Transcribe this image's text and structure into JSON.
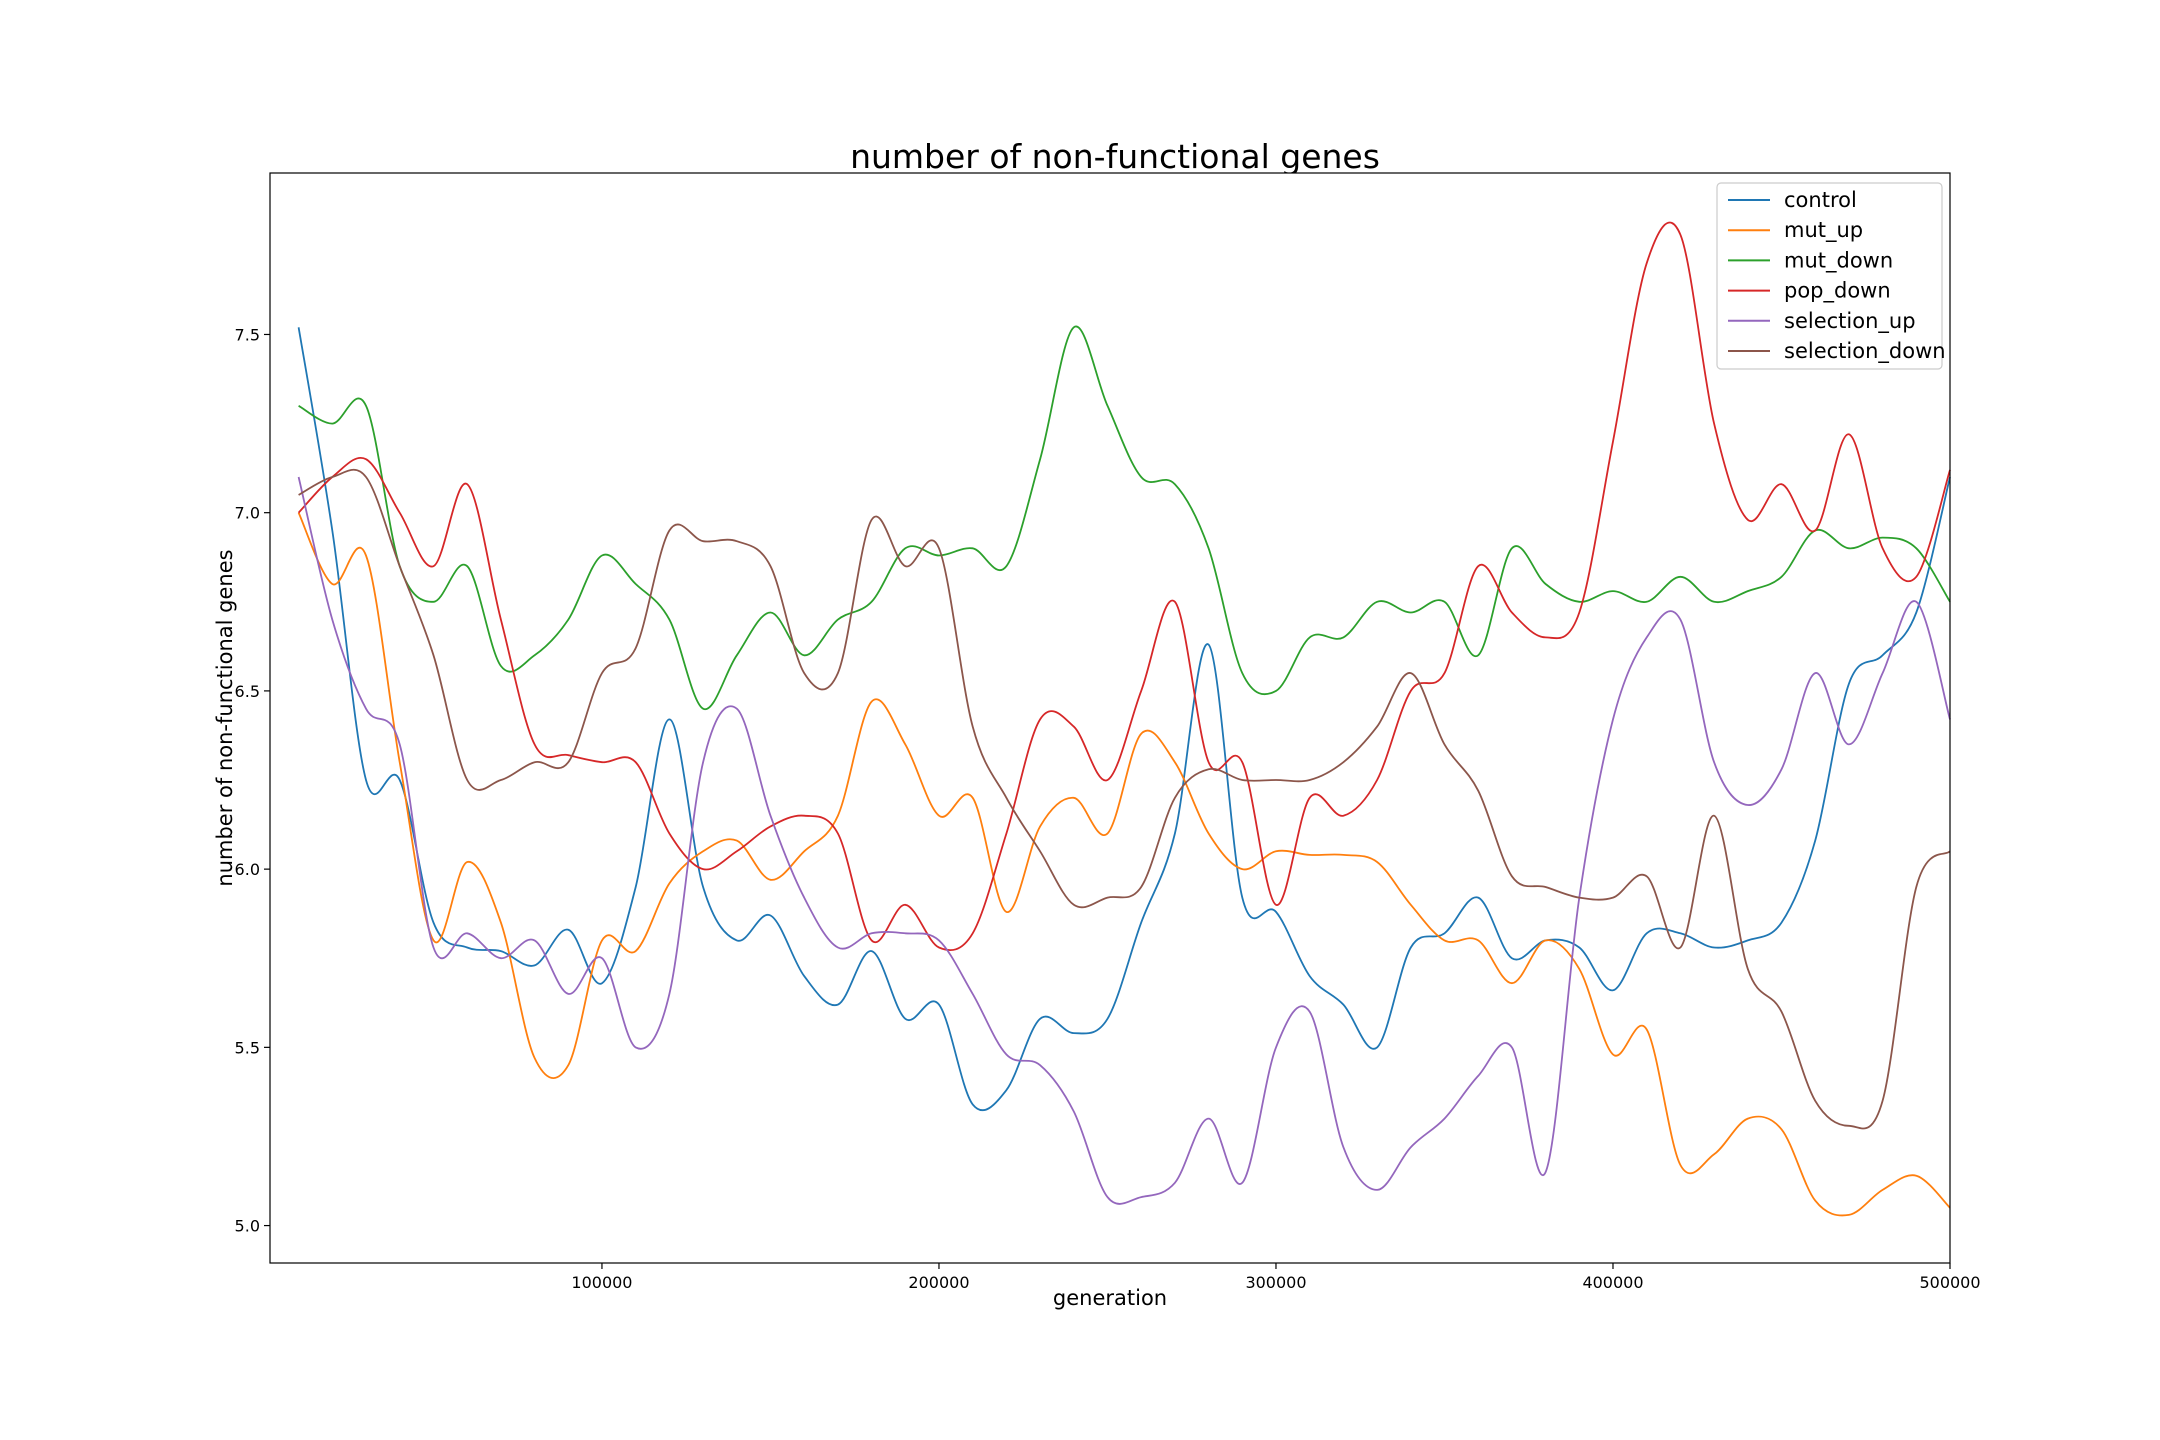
{
  "chart_data": {
    "type": "line",
    "title": "number of non-functional genes",
    "xlabel": "generation",
    "ylabel": "number of non-functional genes",
    "xlim": [
      1500,
      500000
    ],
    "ylim": [
      4.895,
      7.953
    ],
    "xticks": [
      100000,
      200000,
      300000,
      400000,
      500000
    ],
    "xtick_labels": [
      "100000",
      "200000",
      "300000",
      "400000",
      "500000"
    ],
    "yticks": [
      5.0,
      5.5,
      6.0,
      6.5,
      7.0,
      7.5
    ],
    "ytick_labels": [
      "5.0",
      "5.5",
      "6.0",
      "6.5",
      "7.0",
      "7.5"
    ],
    "grid": false,
    "legend_position": "top-right",
    "x": [
      10000,
      20000,
      30000,
      40000,
      50000,
      60000,
      70000,
      80000,
      90000,
      100000,
      110000,
      120000,
      130000,
      140000,
      150000,
      160000,
      170000,
      180000,
      190000,
      200000,
      210000,
      220000,
      230000,
      240000,
      250000,
      260000,
      270000,
      280000,
      290000,
      300000,
      310000,
      320000,
      330000,
      340000,
      350000,
      360000,
      370000,
      380000,
      390000,
      400000,
      410000,
      420000,
      430000,
      440000,
      450000,
      460000,
      470000,
      480000,
      490000,
      500000
    ],
    "series": [
      {
        "name": "control",
        "color": "#1f77b4",
        "values": [
          7.52,
          6.95,
          6.25,
          6.25,
          5.85,
          5.78,
          5.77,
          5.73,
          5.83,
          5.68,
          5.95,
          6.42,
          5.95,
          5.8,
          5.87,
          5.7,
          5.62,
          5.77,
          5.58,
          5.62,
          5.34,
          5.38,
          5.58,
          5.54,
          5.58,
          5.85,
          6.1,
          6.63,
          5.92,
          5.88,
          5.7,
          5.62,
          5.5,
          5.78,
          5.82,
          5.92,
          5.75,
          5.8,
          5.78,
          5.66,
          5.82,
          5.82,
          5.78,
          5.8,
          5.85,
          6.08,
          6.52,
          6.6,
          6.72,
          7.1
        ]
      },
      {
        "name": "mut_up",
        "color": "#ff7f0e",
        "values": [
          7.0,
          6.8,
          6.88,
          6.3,
          5.8,
          6.02,
          5.85,
          5.47,
          5.45,
          5.8,
          5.77,
          5.96,
          6.05,
          6.08,
          5.97,
          6.05,
          6.15,
          6.47,
          6.35,
          6.15,
          6.2,
          5.88,
          6.12,
          6.2,
          6.1,
          6.38,
          6.3,
          6.1,
          6.0,
          6.05,
          6.04,
          6.04,
          6.02,
          5.9,
          5.8,
          5.8,
          5.68,
          5.8,
          5.72,
          5.48,
          5.55,
          5.17,
          5.2,
          5.3,
          5.27,
          5.07,
          5.03,
          5.1,
          5.14,
          5.05
        ]
      },
      {
        "name": "mut_down",
        "color": "#2ca02c",
        "values": [
          7.3,
          7.25,
          7.3,
          6.85,
          6.75,
          6.85,
          6.57,
          6.6,
          6.7,
          6.88,
          6.8,
          6.7,
          6.45,
          6.6,
          6.72,
          6.6,
          6.7,
          6.75,
          6.9,
          6.88,
          6.9,
          6.85,
          7.15,
          7.52,
          7.3,
          7.1,
          7.08,
          6.9,
          6.55,
          6.5,
          6.65,
          6.65,
          6.75,
          6.72,
          6.75,
          6.6,
          6.9,
          6.8,
          6.75,
          6.78,
          6.75,
          6.82,
          6.75,
          6.78,
          6.82,
          6.95,
          6.9,
          6.93,
          6.9,
          6.75
        ]
      },
      {
        "name": "pop_down",
        "color": "#d62728",
        "values": [
          7.0,
          7.1,
          7.15,
          7.0,
          6.85,
          7.08,
          6.7,
          6.35,
          6.32,
          6.3,
          6.3,
          6.1,
          6.0,
          6.05,
          6.12,
          6.15,
          6.1,
          5.8,
          5.9,
          5.78,
          5.82,
          6.1,
          6.42,
          6.4,
          6.25,
          6.5,
          6.75,
          6.3,
          6.3,
          5.9,
          6.2,
          6.15,
          6.25,
          6.5,
          6.55,
          6.85,
          6.72,
          6.65,
          6.72,
          7.2,
          7.7,
          7.78,
          7.25,
          6.98,
          7.08,
          6.95,
          7.22,
          6.9,
          6.82,
          7.12
        ]
      },
      {
        "name": "selection_up",
        "color": "#9467bd",
        "values": [
          7.1,
          6.7,
          6.45,
          6.35,
          5.78,
          5.82,
          5.75,
          5.8,
          5.65,
          5.75,
          5.5,
          5.65,
          6.3,
          6.45,
          6.15,
          5.92,
          5.78,
          5.82,
          5.82,
          5.8,
          5.65,
          5.48,
          5.45,
          5.32,
          5.08,
          5.08,
          5.12,
          5.3,
          5.12,
          5.5,
          5.6,
          5.22,
          5.1,
          5.22,
          5.3,
          5.42,
          5.5,
          5.15,
          5.92,
          6.42,
          6.65,
          6.7,
          6.3,
          6.18,
          6.28,
          6.55,
          6.35,
          6.55,
          6.75,
          6.42
        ]
      },
      {
        "name": "selection_down",
        "color": "#8c564b",
        "values": [
          7.05,
          7.1,
          7.1,
          6.85,
          6.6,
          6.25,
          6.25,
          6.3,
          6.3,
          6.55,
          6.62,
          6.95,
          6.92,
          6.92,
          6.85,
          6.55,
          6.55,
          6.98,
          6.85,
          6.9,
          6.4,
          6.2,
          6.05,
          5.9,
          5.92,
          5.95,
          6.2,
          6.28,
          6.25,
          6.25,
          6.25,
          6.3,
          6.4,
          6.55,
          6.35,
          6.22,
          5.98,
          5.95,
          5.92,
          5.92,
          5.98,
          5.78,
          6.15,
          5.72,
          5.6,
          5.35,
          5.28,
          5.35,
          5.95,
          6.05
        ]
      }
    ]
  }
}
